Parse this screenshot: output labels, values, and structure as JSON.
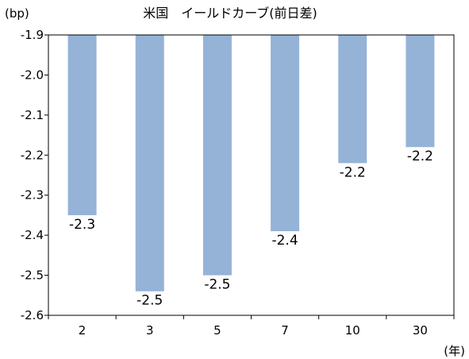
{
  "chart_data": {
    "type": "bar",
    "title": "米国　イールドカーブ(前日差)",
    "ylabel": "(bp)",
    "xlabel": "(年)",
    "categories": [
      "2",
      "3",
      "5",
      "7",
      "10",
      "30"
    ],
    "values": [
      -2.35,
      -2.54,
      -2.5,
      -2.39,
      -2.22,
      -2.18
    ],
    "data_labels": [
      "-2.3",
      "-2.5",
      "-2.5",
      "-2.4",
      "-2.2",
      "-2.2"
    ],
    "ylim": [
      -2.6,
      -1.9
    ],
    "yticks": [
      "-1.9",
      "-2.0",
      "-2.1",
      "-2.2",
      "-2.3",
      "-2.4",
      "-2.5",
      "-2.6"
    ],
    "bar_color": "#95b3d7",
    "grid": false,
    "legend": "none"
  }
}
